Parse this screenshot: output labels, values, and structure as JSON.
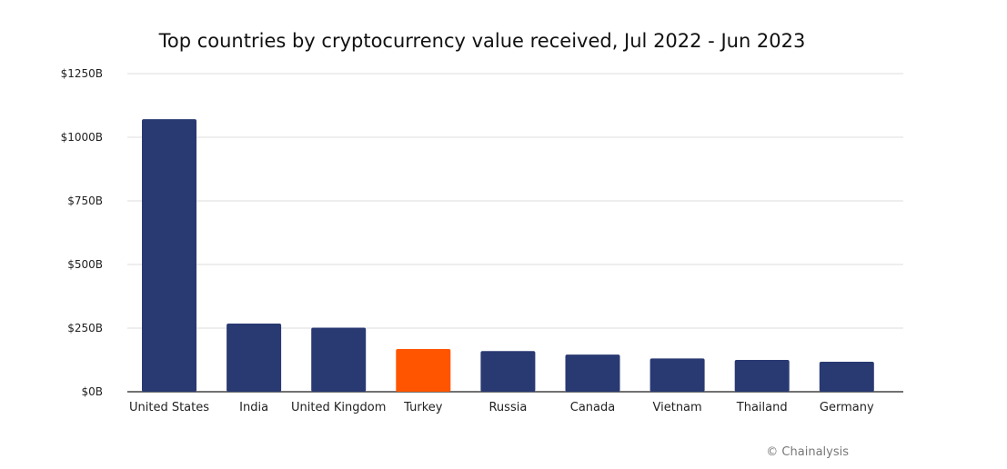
{
  "chart_data": {
    "type": "bar",
    "title": "Top countries by cryptocurrency value received, Jul 2022 - Jun 2023",
    "categories": [
      "United States",
      "India",
      "United Kingdom",
      "Turkey",
      "Russia",
      "Canada",
      "Vietnam",
      "Thailand",
      "Germany"
    ],
    "values": [
      1071,
      268,
      252,
      168,
      160,
      146,
      131,
      125,
      118
    ],
    "unit": "$B",
    "ylim": [
      0,
      1250
    ],
    "yticks": [
      0,
      250,
      500,
      750,
      1000,
      1250
    ],
    "ytick_labels": [
      "$0B",
      "$250B",
      "$500B",
      "$750B",
      "$1000B",
      "$1250B"
    ],
    "xlabel": "",
    "ylabel": "",
    "grid": true,
    "colors": {
      "default": "#293972",
      "highlight": "#ff5500"
    },
    "highlight": "Turkey",
    "credit": "© Chainalysis"
  }
}
